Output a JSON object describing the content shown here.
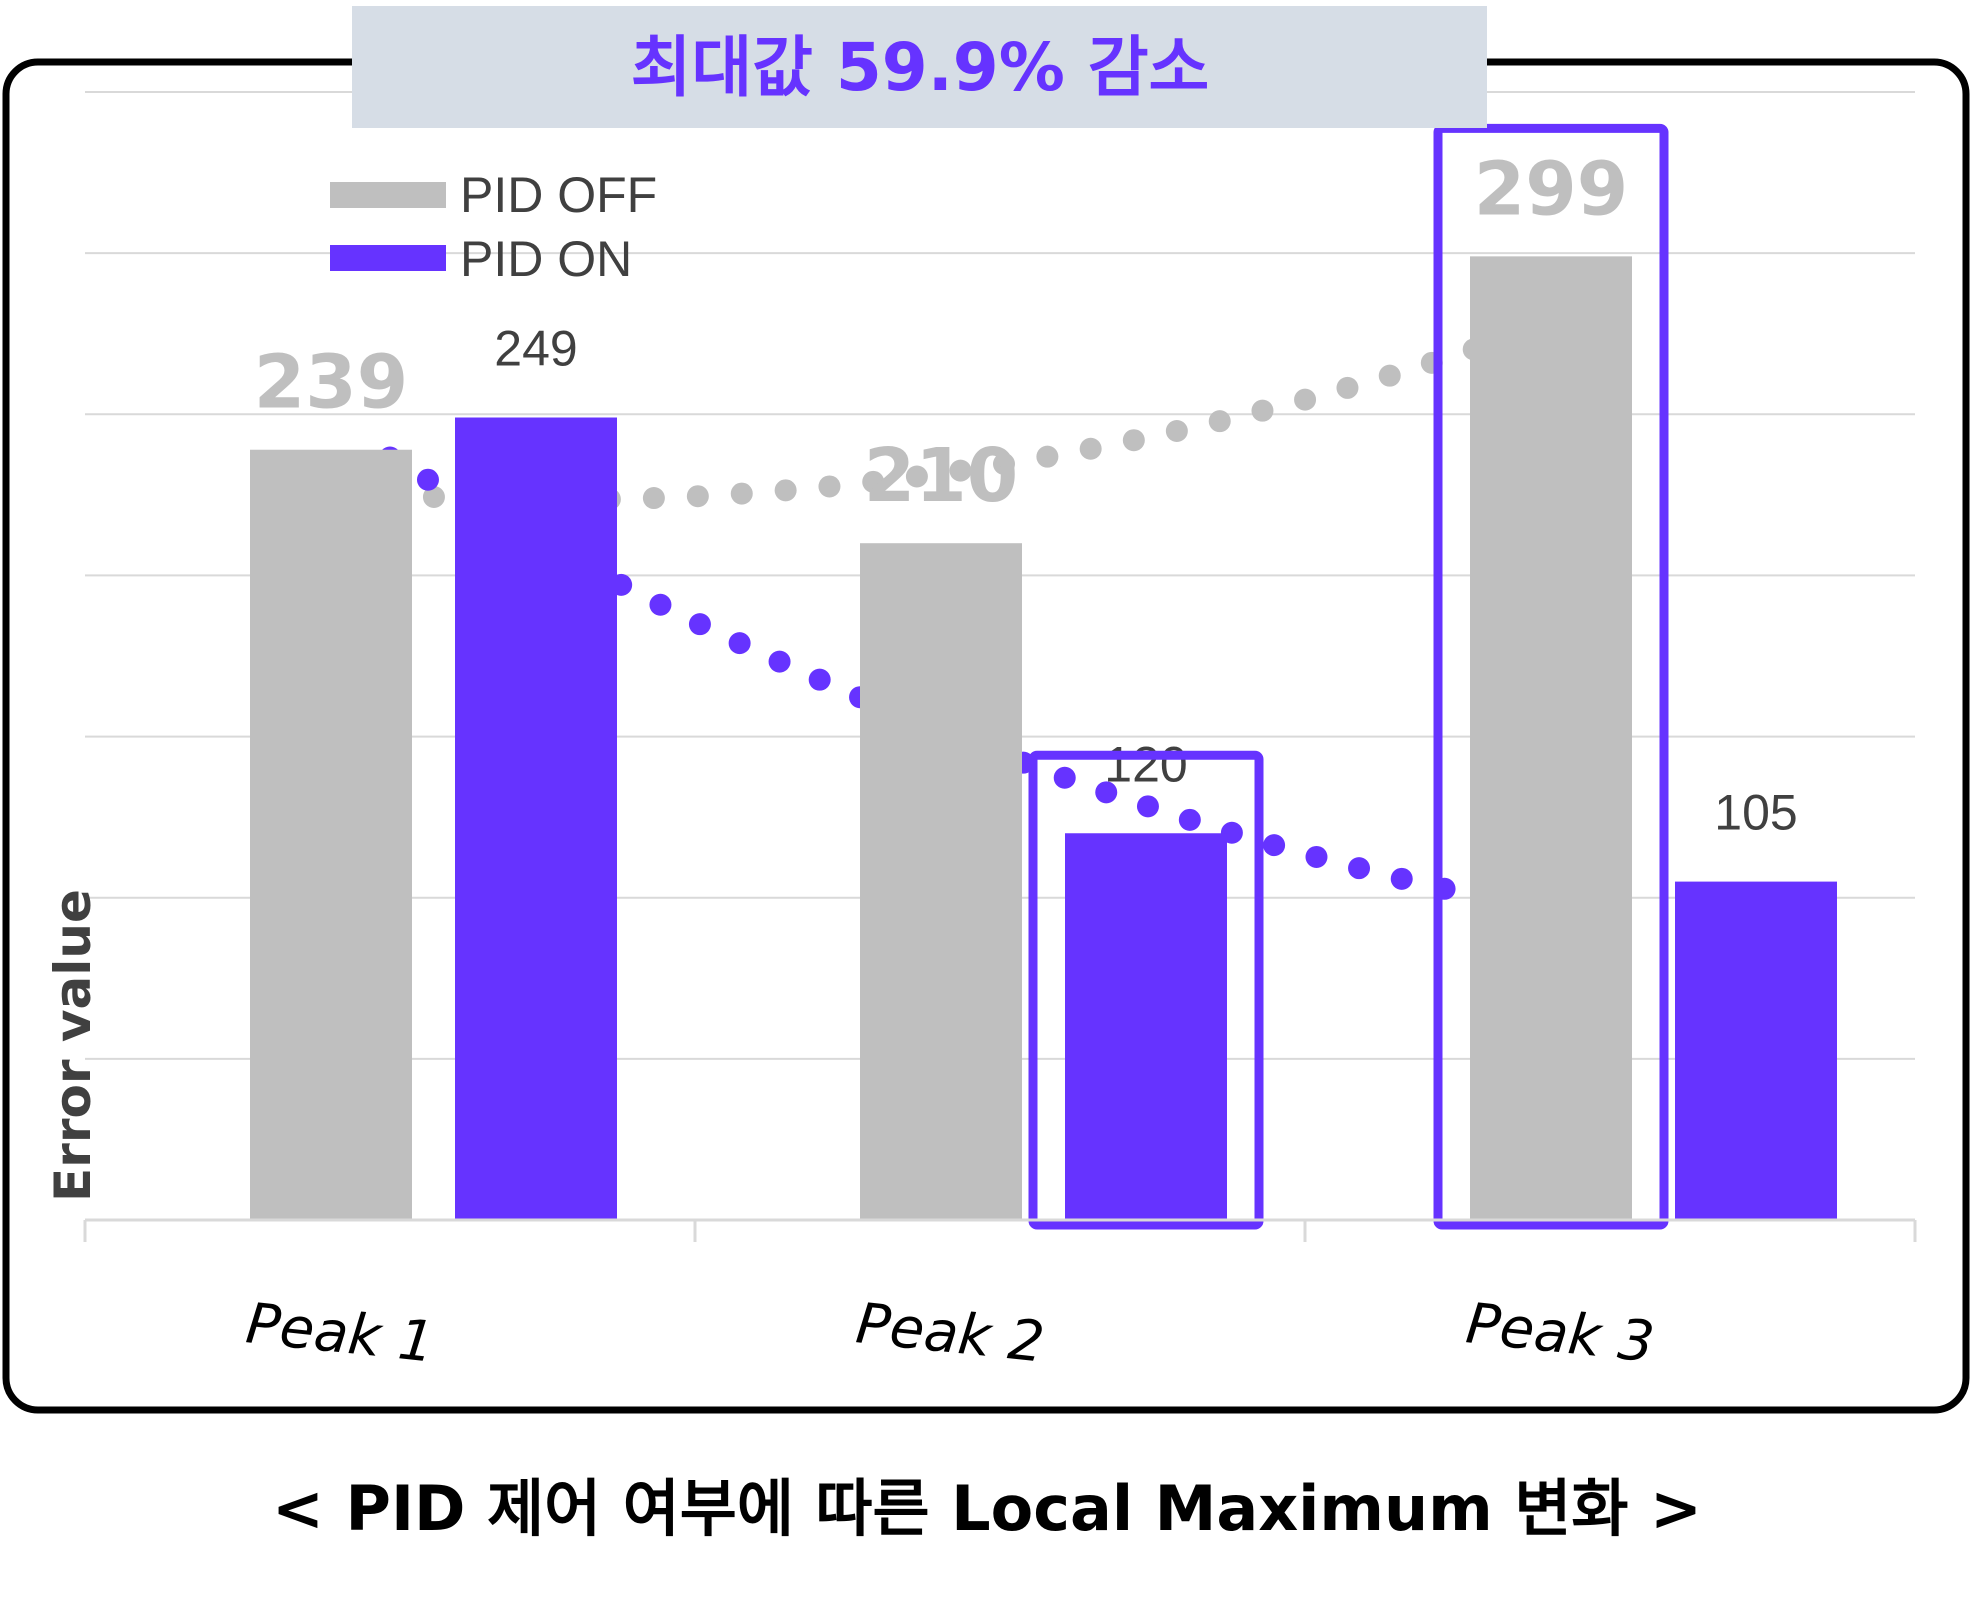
{
  "chart_data": {
    "type": "bar",
    "categories": [
      "Peak 1",
      "Peak 2",
      "Peak 3"
    ],
    "series": [
      {
        "name": "PID OFF",
        "color": "#bfbfbf",
        "values": [
          239,
          210,
          299
        ]
      },
      {
        "name": "PID ON",
        "color": "#6633ff",
        "values": [
          249,
          120,
          105
        ]
      }
    ],
    "value_labels": {
      "PID OFF": [
        "239",
        "210",
        "299"
      ],
      "PID ON": [
        "249",
        "120",
        "105"
      ]
    },
    "trendlines": [
      {
        "series": "PID OFF",
        "style": "dotted",
        "color": "#bfbfbf"
      },
      {
        "series": "PID ON",
        "style": "dotted",
        "color": "#6633ff"
      }
    ],
    "highlights": [
      "Peak 2 / PID ON",
      "Peak 3 / PID OFF"
    ],
    "ylabel": "Error value",
    "ylim": [
      0,
      350
    ],
    "grid": true,
    "legend": "top-left",
    "banner": "최대값 59.9% 감소"
  },
  "caption": "< PID 제어 여부에 따른 Local Maximum 변화 >",
  "colors": {
    "accent": "#6633ff",
    "grey": "#bfbfbf",
    "banner_bg": "#d6dde6"
  }
}
